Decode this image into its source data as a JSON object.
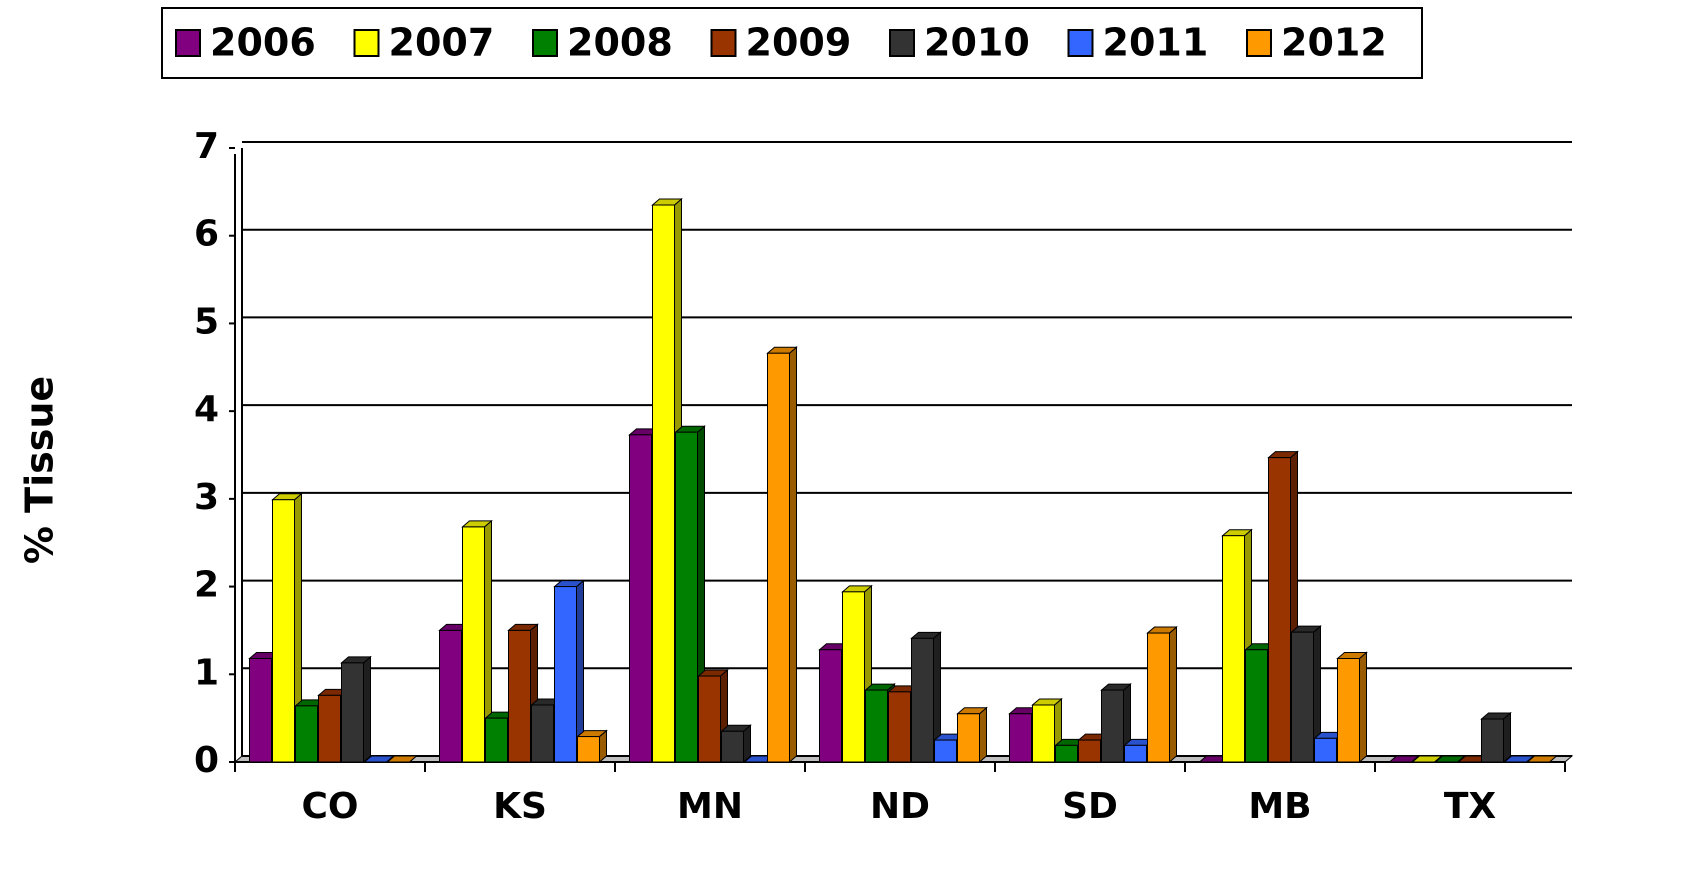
{
  "chart_data": {
    "type": "bar3d",
    "y_label": "% Tissue",
    "categories": [
      "CO",
      "KS",
      "MN",
      "ND",
      "SD",
      "MB",
      "TX"
    ],
    "series": [
      {
        "name": "2006",
        "color": "#800080",
        "values": [
          1.18,
          1.5,
          3.73,
          1.28,
          0.55,
          0,
          0
        ]
      },
      {
        "name": "2007",
        "color": "#ffff00",
        "values": [
          2.99,
          2.68,
          6.35,
          1.94,
          0.65,
          2.58,
          0
        ]
      },
      {
        "name": "2008",
        "color": "#008000",
        "values": [
          0.64,
          0.5,
          3.76,
          0.82,
          0.19,
          1.28,
          0
        ]
      },
      {
        "name": "2009",
        "color": "#993300",
        "values": [
          0.76,
          1.5,
          0.98,
          0.8,
          0.25,
          3.47,
          0
        ]
      },
      {
        "name": "2010",
        "color": "#333333",
        "values": [
          1.13,
          0.65,
          0.35,
          1.41,
          0.82,
          1.48,
          0.49
        ]
      },
      {
        "name": "2011",
        "color": "#3366ff",
        "values": [
          0,
          2.0,
          0,
          0.25,
          0.19,
          0.27,
          0
        ]
      },
      {
        "name": "2012",
        "color": "#ff9900",
        "values": [
          0,
          0.29,
          4.66,
          0.55,
          1.47,
          1.18,
          0
        ]
      }
    ],
    "ylim": [
      0,
      7
    ],
    "yticks": [
      0,
      1,
      2,
      3,
      4,
      5,
      6,
      7
    ],
    "grid": true,
    "legend": "top"
  }
}
